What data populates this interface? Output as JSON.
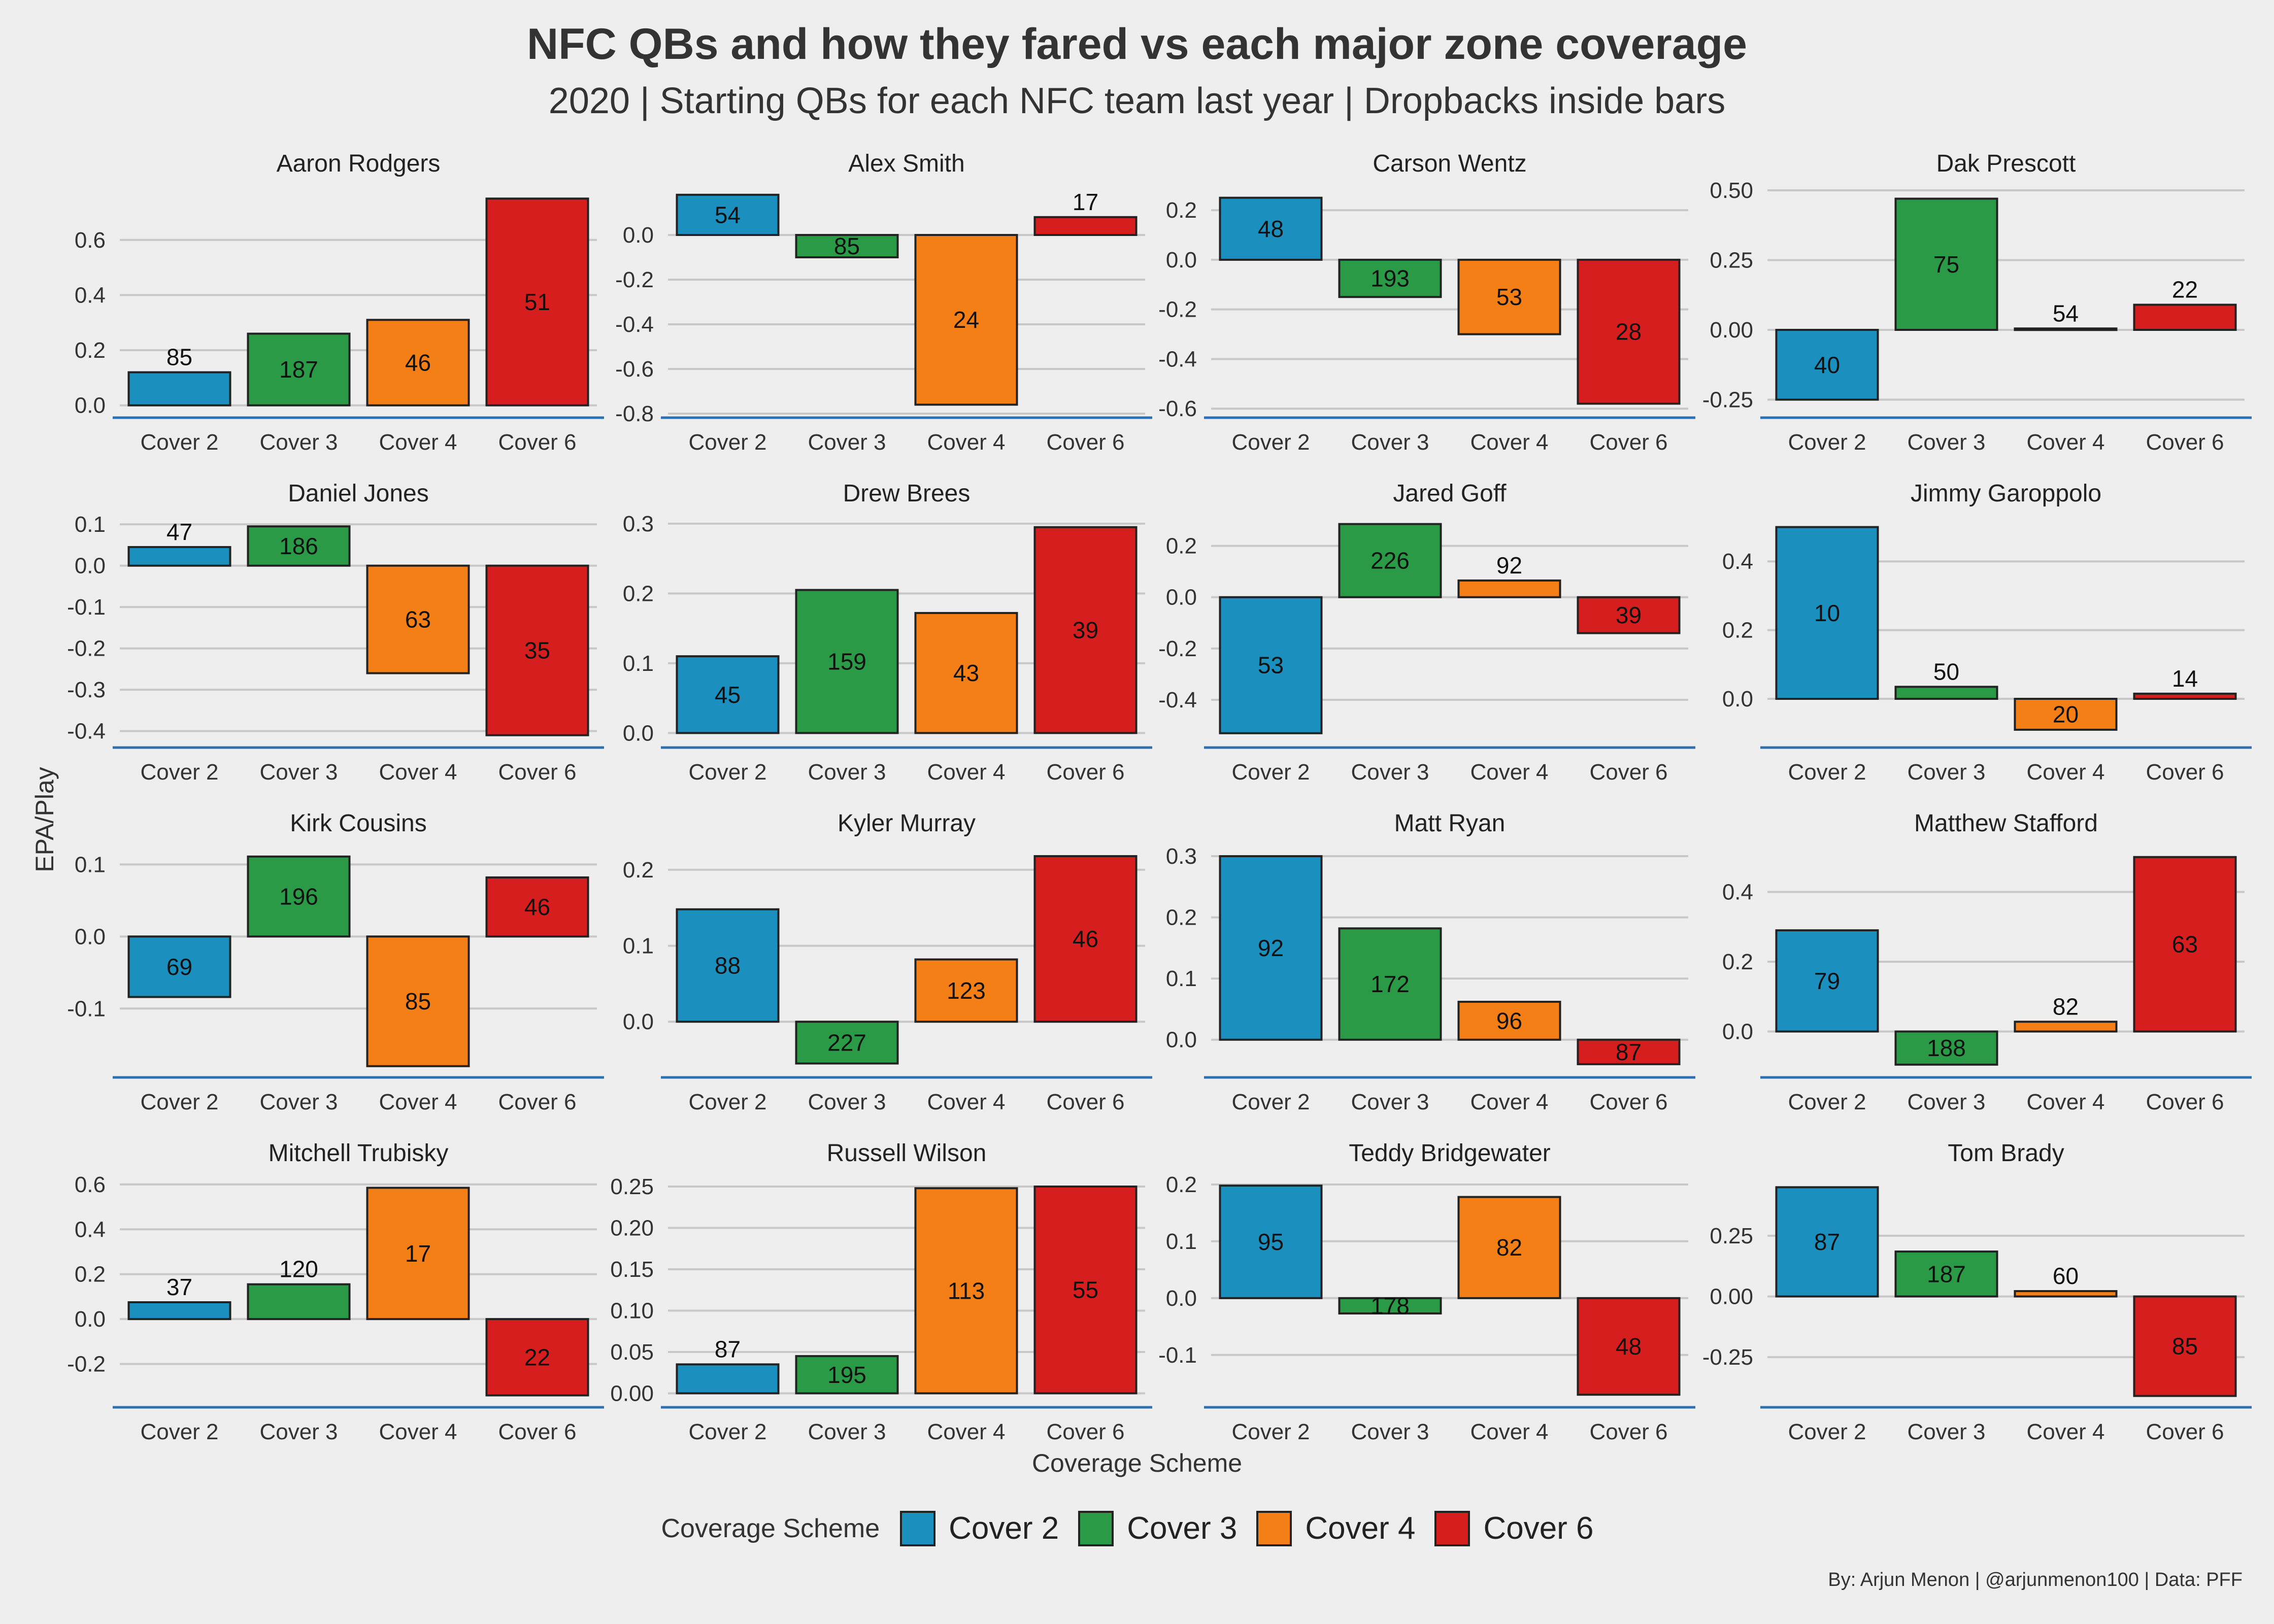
{
  "title": "NFC QBs and how they fared vs each major zone coverage",
  "subtitle": "2020 | Starting QBs for each NFC team last year | Dropbacks inside bars",
  "ylabel": "EPA/Play",
  "xlabel": "Coverage Scheme",
  "legend_title": "Coverage Scheme",
  "caption": "By: Arjun Menon | @arjunmenon100 | Data: PFF",
  "colors": {
    "Cover 2": "#1b8fbe",
    "Cover 3": "#2b9a47",
    "Cover 4": "#f47f16",
    "Cover 6": "#d61e1e"
  },
  "legend": [
    "Cover 2",
    "Cover 3",
    "Cover 4",
    "Cover 6"
  ],
  "chart_data": [
    {
      "type": "bar",
      "title": "Aaron Rodgers",
      "categories": [
        "Cover 2",
        "Cover 3",
        "Cover 4",
        "Cover 6"
      ],
      "values": [
        0.12,
        0.26,
        0.31,
        0.75
      ],
      "labels": [
        "85",
        "187",
        "46",
        "51"
      ],
      "ylim": [
        -0.03,
        0.78
      ],
      "ticks": [
        0.0,
        0.2,
        0.4,
        0.6
      ],
      "tick_labels": [
        "0.0",
        "0.2",
        "0.4",
        "0.6"
      ]
    },
    {
      "type": "bar",
      "title": "Alex Smith",
      "categories": [
        "Cover 2",
        "Cover 3",
        "Cover 4",
        "Cover 6"
      ],
      "values": [
        0.18,
        -0.1,
        -0.76,
        0.08
      ],
      "labels": [
        "54",
        "85",
        "24",
        "17"
      ],
      "ylim": [
        -0.8,
        0.2
      ],
      "ticks": [
        0.0,
        -0.2,
        -0.4,
        -0.6,
        -0.8
      ],
      "tick_labels": [
        "0.0",
        "-0.2",
        "-0.4",
        "-0.6",
        "-0.8"
      ]
    },
    {
      "type": "bar",
      "title": "Carson Wentz",
      "categories": [
        "Cover 2",
        "Cover 3",
        "Cover 4",
        "Cover 6"
      ],
      "values": [
        0.25,
        -0.15,
        -0.3,
        -0.58
      ],
      "labels": [
        "48",
        "193",
        "53",
        "28"
      ],
      "ylim": [
        -0.62,
        0.28
      ],
      "ticks": [
        0.2,
        0.0,
        -0.2,
        -0.4,
        -0.6
      ],
      "tick_labels": [
        "0.2",
        "0.0",
        "-0.2",
        "-0.4",
        "-0.6"
      ]
    },
    {
      "type": "bar",
      "title": "Dak Prescott",
      "categories": [
        "Cover 2",
        "Cover 3",
        "Cover 4",
        "Cover 6"
      ],
      "values": [
        -0.25,
        0.47,
        0.005,
        0.09
      ],
      "labels": [
        "40",
        "75",
        "54",
        "22"
      ],
      "ylim": [
        -0.3,
        0.5
      ],
      "ticks": [
        0.5,
        0.25,
        0.0,
        -0.25
      ],
      "tick_labels": [
        "0.50",
        "0.25",
        "0.00",
        "-0.25"
      ]
    },
    {
      "type": "bar",
      "title": "Daniel Jones",
      "categories": [
        "Cover 2",
        "Cover 3",
        "Cover 4",
        "Cover 6"
      ],
      "values": [
        0.045,
        0.095,
        -0.26,
        -0.41
      ],
      "labels": [
        "47",
        "186",
        "63",
        "35"
      ],
      "ylim": [
        -0.43,
        0.11
      ],
      "ticks": [
        0.1,
        0.0,
        -0.1,
        -0.2,
        -0.3,
        -0.4
      ],
      "tick_labels": [
        "0.1",
        "0.0",
        "-0.1",
        "-0.2",
        "-0.3",
        "-0.4"
      ]
    },
    {
      "type": "bar",
      "title": "Drew Brees",
      "categories": [
        "Cover 2",
        "Cover 3",
        "Cover 4",
        "Cover 6"
      ],
      "values": [
        0.11,
        0.205,
        0.172,
        0.295
      ],
      "labels": [
        "45",
        "159",
        "43",
        "39"
      ],
      "ylim": [
        -0.015,
        0.305
      ],
      "ticks": [
        0.0,
        0.1,
        0.2,
        0.3
      ],
      "tick_labels": [
        "0.0",
        "0.1",
        "0.2",
        "0.3"
      ]
    },
    {
      "type": "bar",
      "title": "Jared Goff",
      "categories": [
        "Cover 2",
        "Cover 3",
        "Cover 4",
        "Cover 6"
      ],
      "values": [
        -0.53,
        0.285,
        0.065,
        -0.14
      ],
      "labels": [
        "53",
        "226",
        "92",
        "39"
      ],
      "ylim": [
        -0.57,
        0.3
      ],
      "ticks": [
        0.2,
        0.0,
        -0.2,
        -0.4
      ],
      "tick_labels": [
        "0.2",
        "0.0",
        "-0.2",
        "-0.4"
      ]
    },
    {
      "type": "bar",
      "title": "Jimmy Garoppolo",
      "categories": [
        "Cover 2",
        "Cover 3",
        "Cover 4",
        "Cover 6"
      ],
      "values": [
        0.5,
        0.035,
        -0.09,
        0.015
      ],
      "labels": [
        "10",
        "50",
        "20",
        "14"
      ],
      "ylim": [
        -0.13,
        0.52
      ],
      "ticks": [
        0.0,
        0.2,
        0.4
      ],
      "tick_labels": [
        "0.0",
        "0.2",
        "0.4"
      ]
    },
    {
      "type": "bar",
      "title": "Kirk Cousins",
      "categories": [
        "Cover 2",
        "Cover 3",
        "Cover 4",
        "Cover 6"
      ],
      "values": [
        -0.084,
        0.111,
        -0.18,
        0.082
      ],
      "labels": [
        "69",
        "196",
        "85",
        "46"
      ],
      "ylim": [
        -0.19,
        0.12
      ],
      "ticks": [
        0.1,
        0.0,
        -0.1
      ],
      "tick_labels": [
        "0.1",
        "0.0",
        "-0.1"
      ]
    },
    {
      "type": "bar",
      "title": "Kyler Murray",
      "categories": [
        "Cover 2",
        "Cover 3",
        "Cover 4",
        "Cover 6"
      ],
      "values": [
        0.148,
        -0.055,
        0.082,
        0.218
      ],
      "labels": [
        "88",
        "227",
        "123",
        "46"
      ],
      "ylim": [
        -0.068,
        0.226
      ],
      "ticks": [
        0.0,
        0.1,
        0.2
      ],
      "tick_labels": [
        "0.0",
        "0.1",
        "0.2"
      ]
    },
    {
      "type": "bar",
      "title": "Matt Ryan",
      "categories": [
        "Cover 2",
        "Cover 3",
        "Cover 4",
        "Cover 6"
      ],
      "values": [
        0.3,
        0.182,
        0.062,
        -0.04
      ],
      "labels": [
        "92",
        "172",
        "96",
        "87"
      ],
      "ylim": [
        -0.055,
        0.31
      ],
      "ticks": [
        0.0,
        0.1,
        0.2,
        0.3
      ],
      "tick_labels": [
        "0.0",
        "0.1",
        "0.2",
        "0.3"
      ]
    },
    {
      "type": "bar",
      "title": "Matthew Stafford",
      "categories": [
        "Cover 2",
        "Cover 3",
        "Cover 4",
        "Cover 6"
      ],
      "values": [
        0.29,
        -0.095,
        0.028,
        0.5
      ],
      "labels": [
        "79",
        "188",
        "82",
        "63"
      ],
      "ylim": [
        -0.12,
        0.52
      ],
      "ticks": [
        0.0,
        0.2,
        0.4
      ],
      "tick_labels": [
        "0.0",
        "0.2",
        "0.4"
      ]
    },
    {
      "type": "bar",
      "title": "Mitchell Trubisky",
      "categories": [
        "Cover 2",
        "Cover 3",
        "Cover 4",
        "Cover 6"
      ],
      "values": [
        0.075,
        0.155,
        0.585,
        -0.34
      ],
      "labels": [
        "37",
        "120",
        "17",
        "22"
      ],
      "ylim": [
        -0.375,
        0.62
      ],
      "ticks": [
        0.6,
        0.4,
        0.2,
        0.0,
        -0.2
      ],
      "tick_labels": [
        "0.6",
        "0.4",
        "0.2",
        "0.0",
        "-0.2"
      ]
    },
    {
      "type": "bar",
      "title": "Russell Wilson",
      "categories": [
        "Cover 2",
        "Cover 3",
        "Cover 4",
        "Cover 6"
      ],
      "values": [
        0.035,
        0.045,
        0.248,
        0.25
      ],
      "labels": [
        "87",
        "195",
        "113",
        "55"
      ],
      "ylim": [
        -0.012,
        0.258
      ],
      "ticks": [
        0.0,
        0.05,
        0.1,
        0.15,
        0.2,
        0.25
      ],
      "tick_labels": [
        "0.00",
        "0.05",
        "0.10",
        "0.15",
        "0.20",
        "0.25"
      ]
    },
    {
      "type": "bar",
      "title": "Teddy Bridgewater",
      "categories": [
        "Cover 2",
        "Cover 3",
        "Cover 4",
        "Cover 6"
      ],
      "values": [
        0.198,
        -0.027,
        0.178,
        -0.17
      ],
      "labels": [
        "95",
        "178",
        "82",
        "48"
      ],
      "ylim": [
        -0.185,
        0.208
      ],
      "ticks": [
        0.2,
        0.1,
        0.0,
        -0.1
      ],
      "tick_labels": [
        "0.2",
        "0.1",
        "0.0",
        "-0.1"
      ]
    },
    {
      "type": "bar",
      "title": "Tom Brady",
      "categories": [
        "Cover 2",
        "Cover 3",
        "Cover 4",
        "Cover 6"
      ],
      "values": [
        0.45,
        0.185,
        0.022,
        -0.41
      ],
      "labels": [
        "87",
        "187",
        "60",
        "85"
      ],
      "ylim": [
        -0.44,
        0.48
      ],
      "ticks": [
        0.25,
        0.0,
        -0.25
      ],
      "tick_labels": [
        "0.25",
        "0.00",
        "-0.25"
      ]
    }
  ]
}
